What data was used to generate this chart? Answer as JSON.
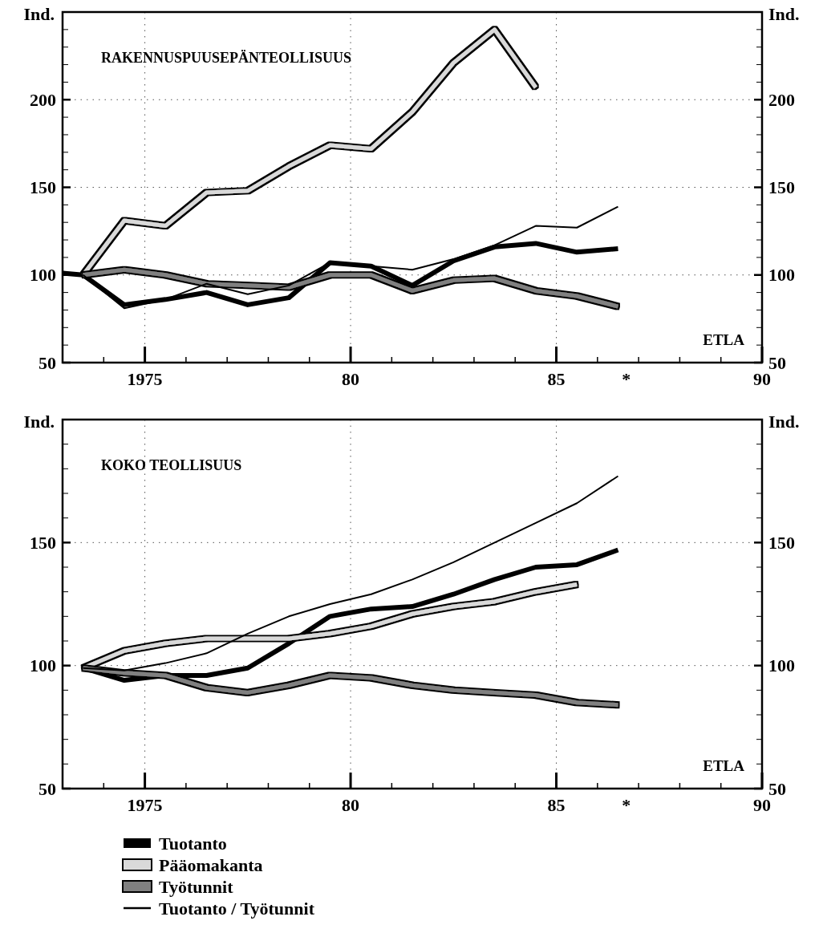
{
  "chart_data": [
    {
      "type": "line",
      "title": "RAKENNUSPUUSEPÄNTEOLLISUUS",
      "ylabel": "Ind.",
      "y2label": "Ind.",
      "annotations": [
        "ETLA"
      ],
      "xlim": [
        1973,
        1990
      ],
      "xticks": [
        {
          "value": 1974,
          "label": null
        },
        {
          "value": 1975,
          "label": "1975"
        },
        {
          "value": 1976,
          "label": null
        },
        {
          "value": 1977,
          "label": null
        },
        {
          "value": 1978,
          "label": null
        },
        {
          "value": 1979,
          "label": null
        },
        {
          "value": 1980,
          "label": "80"
        },
        {
          "value": 1981,
          "label": null
        },
        {
          "value": 1982,
          "label": null
        },
        {
          "value": 1983,
          "label": null
        },
        {
          "value": 1984,
          "label": null
        },
        {
          "value": 1985,
          "label": "85"
        },
        {
          "value": 1986,
          "label": null
        },
        {
          "value": 1986.7,
          "label": "*"
        },
        {
          "value": 1987,
          "label": null
        },
        {
          "value": 1988,
          "label": null
        },
        {
          "value": 1989,
          "label": null
        },
        {
          "value": 1990,
          "label": "90"
        }
      ],
      "ylim": [
        50,
        250
      ],
      "yticks": [
        50,
        {
          "value": 60,
          "label": null
        },
        {
          "value": 70,
          "label": null
        },
        {
          "value": 80,
          "label": null
        },
        {
          "value": 90,
          "label": null
        },
        100,
        {
          "value": 110,
          "label": null
        },
        {
          "value": 120,
          "label": null
        },
        {
          "value": 130,
          "label": null
        },
        {
          "value": 140,
          "label": null
        },
        150,
        {
          "value": 160,
          "label": null
        },
        {
          "value": 170,
          "label": null
        },
        {
          "value": 180,
          "label": null
        },
        {
          "value": 190,
          "label": null
        },
        200,
        {
          "value": 210,
          "label": null
        },
        {
          "value": 220,
          "label": null
        },
        {
          "value": 230,
          "label": null
        },
        {
          "value": 240,
          "label": null
        }
      ],
      "y2lim": [
        50,
        250
      ],
      "y2ticks": [
        50,
        {
          "value": 60,
          "label": null
        },
        {
          "value": 70,
          "label": null
        },
        {
          "value": 80,
          "label": null
        },
        {
          "value": 90,
          "label": null
        },
        100,
        {
          "value": 110,
          "label": null
        },
        {
          "value": 120,
          "label": null
        },
        {
          "value": 130,
          "label": null
        },
        {
          "value": 140,
          "label": null
        },
        150,
        {
          "value": 160,
          "label": null
        },
        {
          "value": 170,
          "label": null
        },
        {
          "value": 180,
          "label": null
        },
        {
          "value": 190,
          "label": null
        },
        200,
        {
          "value": 210,
          "label": null
        },
        {
          "value": 220,
          "label": null
        },
        {
          "value": 230,
          "label": null
        },
        {
          "value": 240,
          "label": null
        }
      ],
      "grid": true,
      "legend": false,
      "series": [
        {
          "color": "#000000",
          "x": [
            1973,
            1973.5,
            1974.5,
            1975.5,
            1976.5,
            1977.5,
            1978.5,
            1979.5,
            1980.5,
            1981.5,
            1982.5,
            1983.5,
            1984.5,
            1985.5,
            1986.5
          ],
          "values": [
            101,
            100,
            83,
            86,
            90,
            83,
            87,
            107,
            105,
            94,
            108,
            116,
            118,
            113,
            115
          ]
        },
        {
          "color": "#d9d9d9",
          "x": [
            1973.5,
            1974.5,
            1975.5,
            1976.5,
            1977.5,
            1978.5,
            1979.5,
            1980.5,
            1981.5,
            1982.5,
            1983.5,
            1984.5
          ],
          "values": [
            100,
            131,
            128,
            147,
            148,
            162,
            174,
            172,
            193,
            221,
            240,
            207
          ]
        },
        {
          "color": "#808080",
          "x": [
            1973.5,
            1974.5,
            1975.5,
            1976.5,
            1977.5,
            1978.5,
            1979.5,
            1980.5,
            1981.5,
            1982.5,
            1983.5,
            1984.5,
            1985.5,
            1986.5
          ],
          "values": [
            100,
            103,
            100,
            95,
            94,
            93,
            100,
            100,
            91,
            97,
            98,
            91,
            88,
            82
          ]
        },
        {
          "color": "#000000",
          "x": [
            1973.5,
            1974.5,
            1975.5,
            1976.5,
            1977.5,
            1978.5,
            1979.5,
            1980.5,
            1981.5,
            1982.5,
            1983.5,
            1984.5,
            1985.5,
            1986.5
          ],
          "values": [
            100,
            81,
            86,
            95,
            89,
            94,
            107,
            105,
            103,
            109,
            117,
            128,
            127,
            139
          ]
        }
      ]
    },
    {
      "type": "line",
      "title": "KOKO TEOLLISUUS",
      "ylabel": "Ind.",
      "y2label": "Ind.",
      "annotations": [
        "ETLA"
      ],
      "xlim": [
        1973,
        1990
      ],
      "xticks": [
        {
          "value": 1974,
          "label": null
        },
        {
          "value": 1975,
          "label": "1975"
        },
        {
          "value": 1976,
          "label": null
        },
        {
          "value": 1977,
          "label": null
        },
        {
          "value": 1978,
          "label": null
        },
        {
          "value": 1979,
          "label": null
        },
        {
          "value": 1980,
          "label": "80"
        },
        {
          "value": 1981,
          "label": null
        },
        {
          "value": 1982,
          "label": null
        },
        {
          "value": 1983,
          "label": null
        },
        {
          "value": 1984,
          "label": null
        },
        {
          "value": 1985,
          "label": "85"
        },
        {
          "value": 1986,
          "label": null
        },
        {
          "value": 1986.7,
          "label": "*"
        },
        {
          "value": 1987,
          "label": null
        },
        {
          "value": 1988,
          "label": null
        },
        {
          "value": 1989,
          "label": null
        },
        {
          "value": 1990,
          "label": "90"
        }
      ],
      "ylim": [
        50,
        200
      ],
      "yticks": [
        50,
        {
          "value": 60,
          "label": null
        },
        {
          "value": 70,
          "label": null
        },
        {
          "value": 80,
          "label": null
        },
        {
          "value": 90,
          "label": null
        },
        100,
        {
          "value": 110,
          "label": null
        },
        {
          "value": 120,
          "label": null
        },
        {
          "value": 130,
          "label": null
        },
        {
          "value": 140,
          "label": null
        },
        150,
        {
          "value": 160,
          "label": null
        },
        {
          "value": 170,
          "label": null
        },
        {
          "value": 180,
          "label": null
        },
        {
          "value": 190,
          "label": null
        }
      ],
      "y2lim": [
        50,
        200
      ],
      "y2ticks": [
        50,
        {
          "value": 60,
          "label": null
        },
        {
          "value": 70,
          "label": null
        },
        {
          "value": 80,
          "label": null
        },
        {
          "value": 90,
          "label": null
        },
        100,
        {
          "value": 110,
          "label": null
        },
        {
          "value": 120,
          "label": null
        },
        {
          "value": 130,
          "label": null
        },
        {
          "value": 140,
          "label": null
        },
        150,
        {
          "value": 160,
          "label": null
        },
        {
          "value": 170,
          "label": null
        },
        {
          "value": 180,
          "label": null
        },
        {
          "value": 190,
          "label": null
        }
      ],
      "grid": true,
      "legend": "bottom",
      "series": [
        {
          "name": "Tuotanto",
          "color": "#000000",
          "x": [
            1973.5,
            1974.5,
            1975.5,
            1976.5,
            1977.5,
            1978.5,
            1979.5,
            1980.5,
            1981.5,
            1982.5,
            1983.5,
            1984.5,
            1985.5,
            1986.5
          ],
          "values": [
            99,
            94,
            96,
            96,
            99,
            109,
            120,
            123,
            124,
            129,
            135,
            140,
            141,
            147
          ]
        },
        {
          "name": "Pääomakanta",
          "color": "#d9d9d9",
          "x": [
            1973.5,
            1974.5,
            1975.5,
            1976.5,
            1977.5,
            1978.5,
            1979.5,
            1980.5,
            1981.5,
            1982.5,
            1983.5,
            1984.5,
            1985.5
          ],
          "values": [
            99,
            106,
            109,
            111,
            111,
            111,
            113,
            116,
            121,
            124,
            126,
            130,
            133
          ]
        },
        {
          "name": "Työtunnit",
          "color": "#808080",
          "x": [
            1973.5,
            1974.5,
            1975.5,
            1976.5,
            1977.5,
            1978.5,
            1979.5,
            1980.5,
            1981.5,
            1982.5,
            1983.5,
            1984.5,
            1985.5,
            1986.5
          ],
          "values": [
            99,
            97,
            96,
            91,
            89,
            92,
            96,
            95,
            92,
            90,
            89,
            88,
            85,
            84
          ]
        },
        {
          "name": "Tuotanto / Työtunnit",
          "color": "#000000",
          "x": [
            1973.5,
            1974.5,
            1975.5,
            1976.5,
            1977.5,
            1978.5,
            1979.5,
            1980.5,
            1981.5,
            1982.5,
            1983.5,
            1984.5,
            1985.5,
            1986.5
          ],
          "values": [
            99,
            98,
            101,
            105,
            113,
            120,
            125,
            129,
            135,
            142,
            150,
            158,
            166,
            177
          ]
        }
      ]
    }
  ]
}
